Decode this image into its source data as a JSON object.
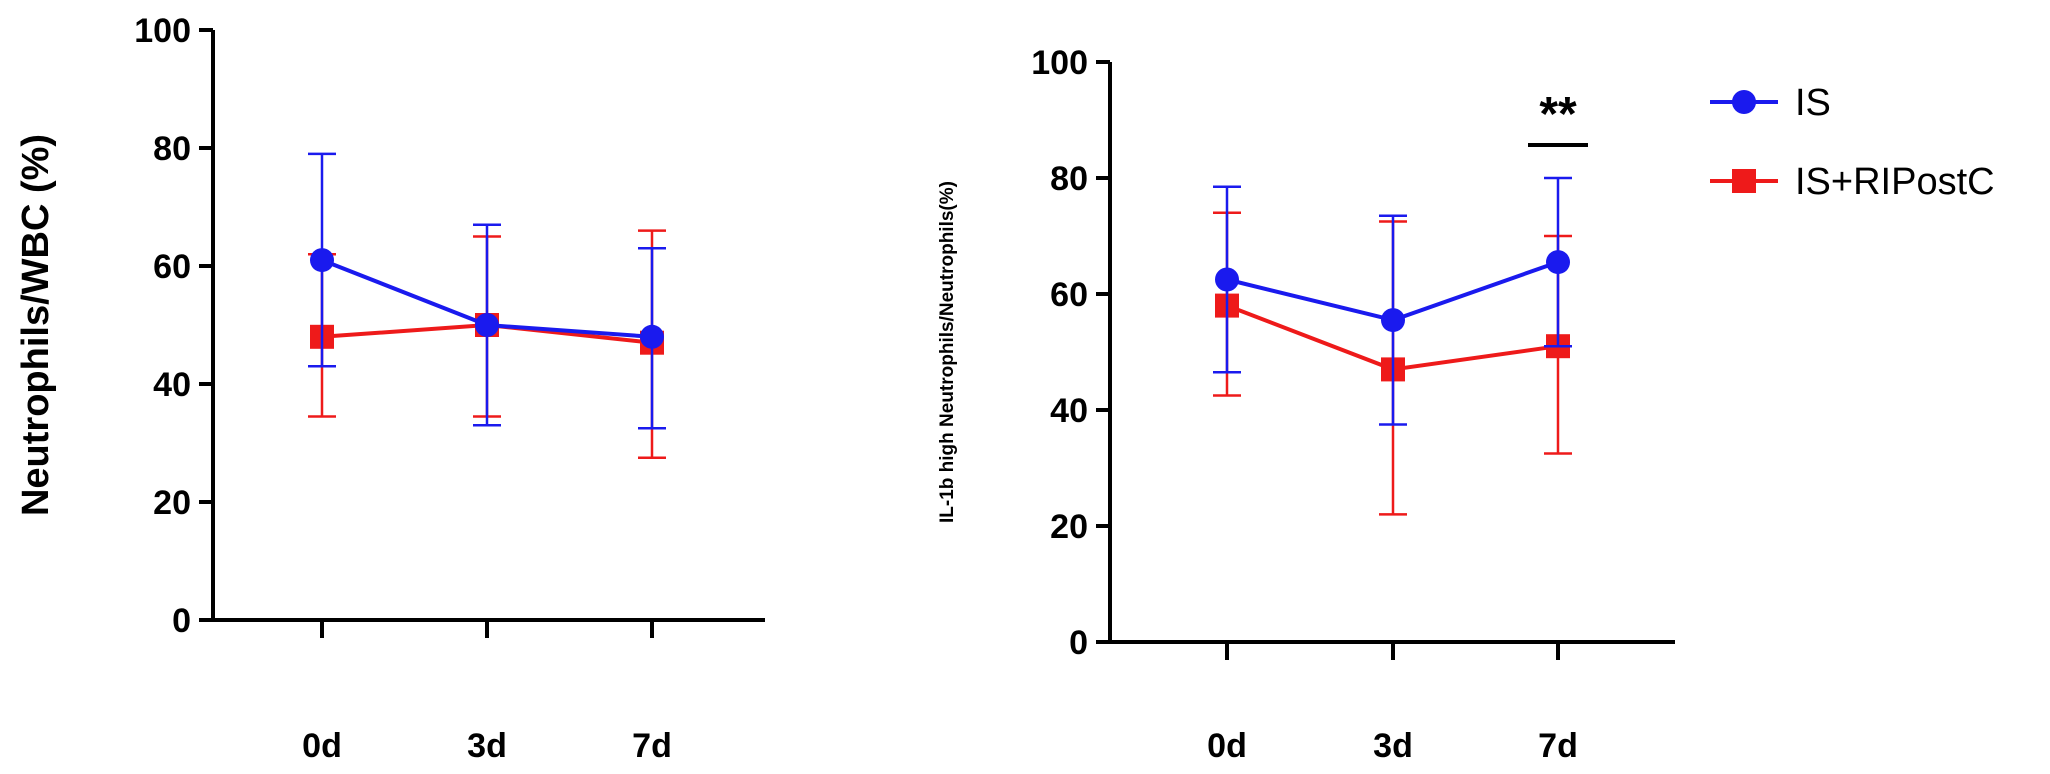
{
  "colors": {
    "IS": "#1a1aee",
    "IS+RIPostC": "#ee1a1a",
    "axis": "#000000"
  },
  "legend": [
    {
      "name": "IS",
      "marker": "circle",
      "color": "#1a1aee"
    },
    {
      "name": "IS+RIPostC",
      "marker": "square",
      "color": "#ee1a1a"
    }
  ],
  "chart_data": [
    {
      "type": "line",
      "title": "",
      "xlabel": "",
      "ylabel": "Neutrophils/WBC (%)",
      "categories": [
        "0d",
        "3d",
        "7d"
      ],
      "ylim": [
        0,
        100
      ],
      "yticks": [
        0,
        20,
        40,
        60,
        80,
        100
      ],
      "series": [
        {
          "name": "IS",
          "values": [
            61,
            50,
            48
          ],
          "err_low": [
            43,
            33,
            32.5
          ],
          "err_high": [
            79,
            67,
            63
          ]
        },
        {
          "name": "IS+RIPostC",
          "values": [
            48,
            50,
            47
          ],
          "err_low": [
            34.5,
            34.5,
            27.5
          ],
          "err_high": [
            62,
            65,
            66
          ]
        }
      ],
      "annotations": []
    },
    {
      "type": "line",
      "title": "",
      "xlabel": "",
      "ylabel": "IL-1b high Neutrophils/Neutrophils(%)",
      "categories": [
        "0d",
        "3d",
        "7d"
      ],
      "ylim": [
        0,
        100
      ],
      "yticks": [
        0,
        20,
        40,
        60,
        80,
        100
      ],
      "series": [
        {
          "name": "IS",
          "values": [
            62.5,
            55.5,
            65.5
          ],
          "err_low": [
            46.5,
            37.5,
            51
          ],
          "err_high": [
            78.5,
            73.5,
            80
          ]
        },
        {
          "name": "IS+RIPostC",
          "values": [
            58,
            47,
            51
          ],
          "err_low": [
            42.5,
            22,
            32.5
          ],
          "err_high": [
            74,
            72.5,
            70
          ]
        }
      ],
      "annotations": [
        {
          "category": "7d",
          "text": "**"
        }
      ]
    }
  ]
}
